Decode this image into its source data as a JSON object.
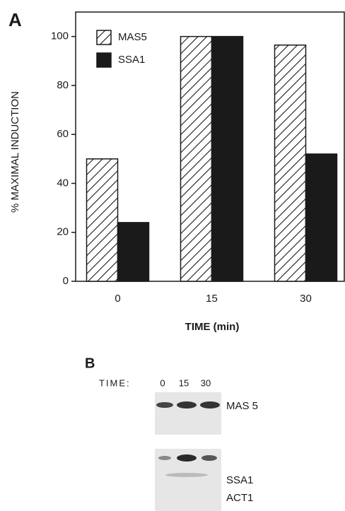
{
  "panel_a_label": "A",
  "chart_data": {
    "type": "bar",
    "y_label": "% MAXIMAL INDUCTION",
    "x_label": "TIME (min)",
    "categories": [
      "0",
      "15",
      "30"
    ],
    "series": [
      {
        "name": "MAS5",
        "color": "#ffffff",
        "hatch": true,
        "values": [
          50,
          100,
          96.5
        ]
      },
      {
        "name": "SSA1",
        "color": "#1a1a1a",
        "hatch": false,
        "values": [
          24,
          100,
          52
        ]
      }
    ],
    "ylim": [
      0,
      110
    ],
    "yticks": [
      0,
      20,
      40,
      60,
      80,
      100
    ]
  },
  "panel_b": {
    "label": "B",
    "time_label": "TIME:",
    "lanes": [
      "0",
      "15",
      "30"
    ],
    "blot_labels": [
      "MAS 5",
      "SSA1",
      "ACT1"
    ]
  }
}
